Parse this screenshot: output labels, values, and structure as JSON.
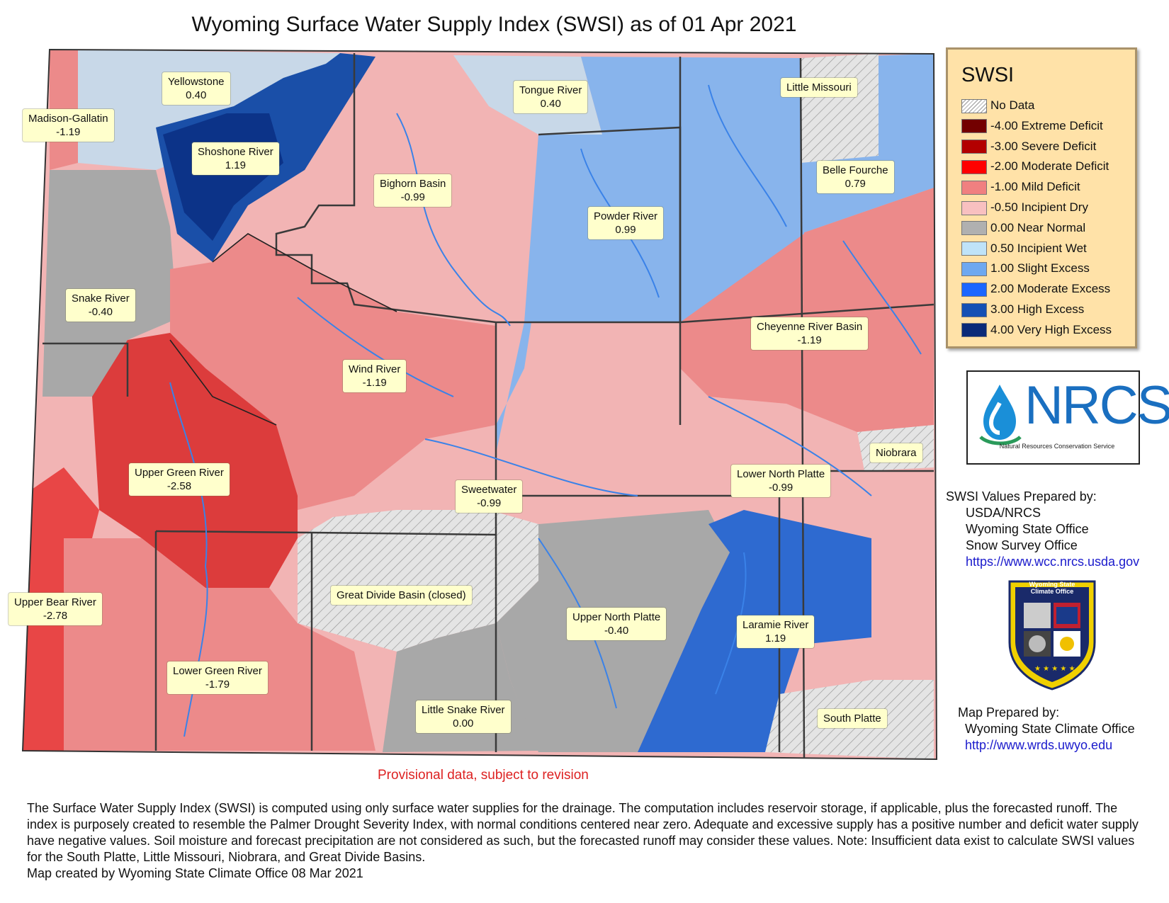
{
  "title": "Wyoming Surface Water Supply Index (SWSI) as of 01 Apr 2021",
  "basins": [
    {
      "name": "Yellowstone",
      "value": "0.40"
    },
    {
      "name": "Madison-Gallatin",
      "value": "-1.19"
    },
    {
      "name": "Shoshone River",
      "value": "1.19"
    },
    {
      "name": "Tongue River",
      "value": "0.40"
    },
    {
      "name": "Little Missouri",
      "value": ""
    },
    {
      "name": "Bighorn Basin",
      "value": "-0.99"
    },
    {
      "name": "Belle Fourche",
      "value": "0.79"
    },
    {
      "name": "Powder River",
      "value": "0.99"
    },
    {
      "name": "Snake River",
      "value": "-0.40"
    },
    {
      "name": "Cheyenne River Basin",
      "value": "-1.19"
    },
    {
      "name": "Wind River",
      "value": "-1.19"
    },
    {
      "name": "Niobrara",
      "value": ""
    },
    {
      "name": "Upper Green River",
      "value": "-2.58"
    },
    {
      "name": "Lower North Platte",
      "value": "-0.99"
    },
    {
      "name": "Sweetwater",
      "value": "-0.99"
    },
    {
      "name": "Great Divide Basin (closed)",
      "value": ""
    },
    {
      "name": "Upper Bear River",
      "value": "-2.78"
    },
    {
      "name": "Upper North Platte",
      "value": "-0.40"
    },
    {
      "name": "Laramie River",
      "value": "1.19"
    },
    {
      "name": "Lower Green River",
      "value": "-1.79"
    },
    {
      "name": "Little Snake River",
      "value": "0.00"
    },
    {
      "name": "South Platte",
      "value": ""
    }
  ],
  "legend": {
    "title": "SWSI",
    "items": [
      {
        "label": "No Data",
        "color": "hatch"
      },
      {
        "label": "-4.00 Extreme Deficit",
        "color": "#730000"
      },
      {
        "label": "-3.00 Severe Deficit",
        "color": "#b30000"
      },
      {
        "label": "-2.00 Moderate Deficit",
        "color": "#ff0000"
      },
      {
        "label": "-1.00 Mild Deficit",
        "color": "#f08080"
      },
      {
        "label": "-0.50 Incipient Dry",
        "color": "#f8c0c0"
      },
      {
        "label": "0.00 Near Normal",
        "color": "#b0b0b0"
      },
      {
        "label": "0.50 Incipient Wet",
        "color": "#bfe3f8"
      },
      {
        "label": "1.00 Slight Excess",
        "color": "#6ea8f0"
      },
      {
        "label": "2.00 Moderate Excess",
        "color": "#1a66ff"
      },
      {
        "label": "3.00 High Excess",
        "color": "#1450b4"
      },
      {
        "label": "4.00 Very High Excess",
        "color": "#0a2a78"
      }
    ]
  },
  "nrcs": {
    "logo_text": "NRCS",
    "subtitle": "Natural Resources Conservation Service"
  },
  "prepared_by": {
    "line1": "SWSI Values Prepared by:",
    "line2": "USDA/NRCS",
    "line3": "Wyoming State Office",
    "line4": "Snow Survey Office",
    "url": "https://www.wcc.nrcs.usda.gov"
  },
  "seal": {
    "line1": "Wyoming State",
    "line2": "Climate Office"
  },
  "map_prepared": {
    "line1": "Map Prepared by:",
    "line2": "Wyoming State Climate Office",
    "url": "http://www.wrds.uwyo.edu"
  },
  "provisional": "Provisional data, subject to revision",
  "footnote": "The Surface Water Supply Index (SWSI) is computed using only surface water supplies for the drainage. The computation includes reservoir storage, if applicable, plus the forecasted runoff. The index is purposely created to resemble the Palmer Drought Severity Index, with normal conditions centered near zero. Adequate and excessive supply has a positive number and deficit water supply have negative values. Soil moisture and forecast precipitation are not considered as such, but the forecasted runoff may consider these values.  Note: Insufficient data exist to calculate SWSI values for the South Platte, Little Missouri, Niobrara, and Great Divide Basins.",
  "created": "Map created by Wyoming State Climate Office 08 Mar 2021"
}
